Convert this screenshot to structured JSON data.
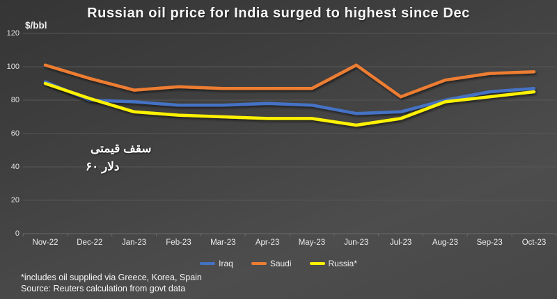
{
  "title": "Russian oil price for India surged to highest since Dec",
  "chart_data": {
    "type": "line",
    "title": "Russian oil price for India surged to highest since Dec",
    "ylabel": "$/bbl",
    "xlabel": "",
    "ylim": [
      0,
      120
    ],
    "yticks": [
      0,
      20,
      40,
      60,
      80,
      100,
      120
    ],
    "grid": true,
    "legend_position": "bottom",
    "categories": [
      "Nov-22",
      "Dec-22",
      "Jan-23",
      "Feb-23",
      "Mar-23",
      "Apr-23",
      "May-23",
      "Jun-23",
      "Jul-23",
      "Aug-23",
      "Sep-23",
      "Oct-23"
    ],
    "series": [
      {
        "name": "Iraq",
        "color": "#4472C4",
        "values": [
          91,
          80,
          79,
          77,
          77,
          78,
          77,
          72,
          73,
          80,
          85,
          87
        ]
      },
      {
        "name": "Saudi",
        "color": "#ED7D31",
        "values": [
          101,
          93,
          86,
          88,
          87,
          87,
          87,
          101,
          82,
          92,
          96,
          97
        ]
      },
      {
        "name": "Russia*",
        "color": "#FFF200",
        "values": [
          90,
          81,
          73,
          71,
          70,
          69,
          69,
          65,
          69,
          79,
          82,
          85
        ]
      }
    ],
    "cap_line": {
      "value": 60,
      "color": "#FFFFFF",
      "label_line1": "سقف قیمتی",
      "label_line2": "۶۰ دلار"
    }
  },
  "footnotes": {
    "line1": "*includes oil supplied via Greece, Korea, Spain",
    "line2": "Source: Reuters calculation from govt data"
  },
  "colors": {
    "background_top": "#353535",
    "background_bottom": "#4d4d4d",
    "gridline": "#575757",
    "axis": "#6b6b6b",
    "text": "#f2f2f2"
  }
}
